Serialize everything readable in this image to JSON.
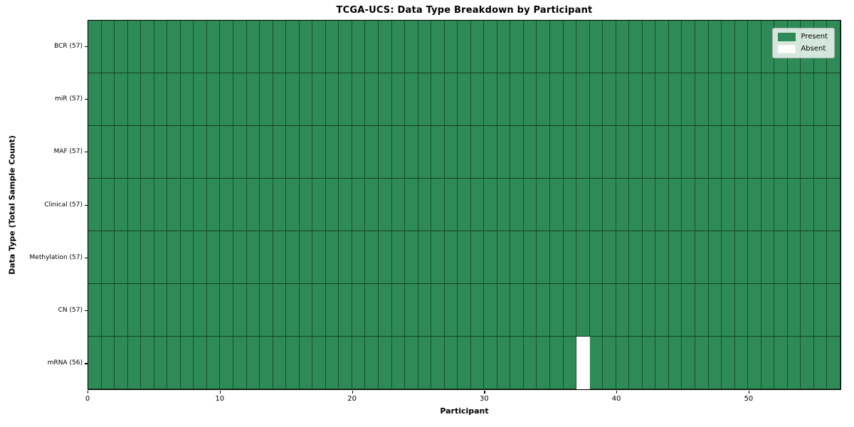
{
  "chart_data": {
    "type": "heatmap",
    "title": "TCGA-UCS: Data Type Breakdown by Participant",
    "xlabel": "Participant",
    "ylabel": "Data Type (Total Sample Count)",
    "n_participants": 57,
    "x_ticks": [
      0,
      10,
      20,
      30,
      40,
      50
    ],
    "x_range": [
      0,
      57
    ],
    "grid": "cell-borders",
    "legend_position": "upper-right-inside",
    "rows": [
      {
        "data_type": "BCR",
        "label": "BCR (57)",
        "count": 57,
        "absent_participants": []
      },
      {
        "data_type": "miR",
        "label": "miR (57)",
        "count": 57,
        "absent_participants": []
      },
      {
        "data_type": "MAF",
        "label": "MAF (57)",
        "count": 57,
        "absent_participants": []
      },
      {
        "data_type": "Clinical",
        "label": "Clinical (57)",
        "count": 57,
        "absent_participants": []
      },
      {
        "data_type": "Methylation",
        "label": "Methylation (57)",
        "count": 57,
        "absent_participants": []
      },
      {
        "data_type": "CN",
        "label": "CN (57)",
        "count": 57,
        "absent_participants": []
      },
      {
        "data_type": "mRNA",
        "label": "mRNA (56)",
        "count": 56,
        "absent_participants": [
          37
        ]
      }
    ],
    "legend": [
      {
        "label": "Present",
        "color": "#2e8b57"
      },
      {
        "label": "Absent",
        "color": "#ffffff"
      }
    ],
    "colors": {
      "present": "#2e8b57",
      "absent": "#ffffff",
      "cell_edge": "#000000",
      "axis": "#000000",
      "background": "#ffffff"
    }
  }
}
